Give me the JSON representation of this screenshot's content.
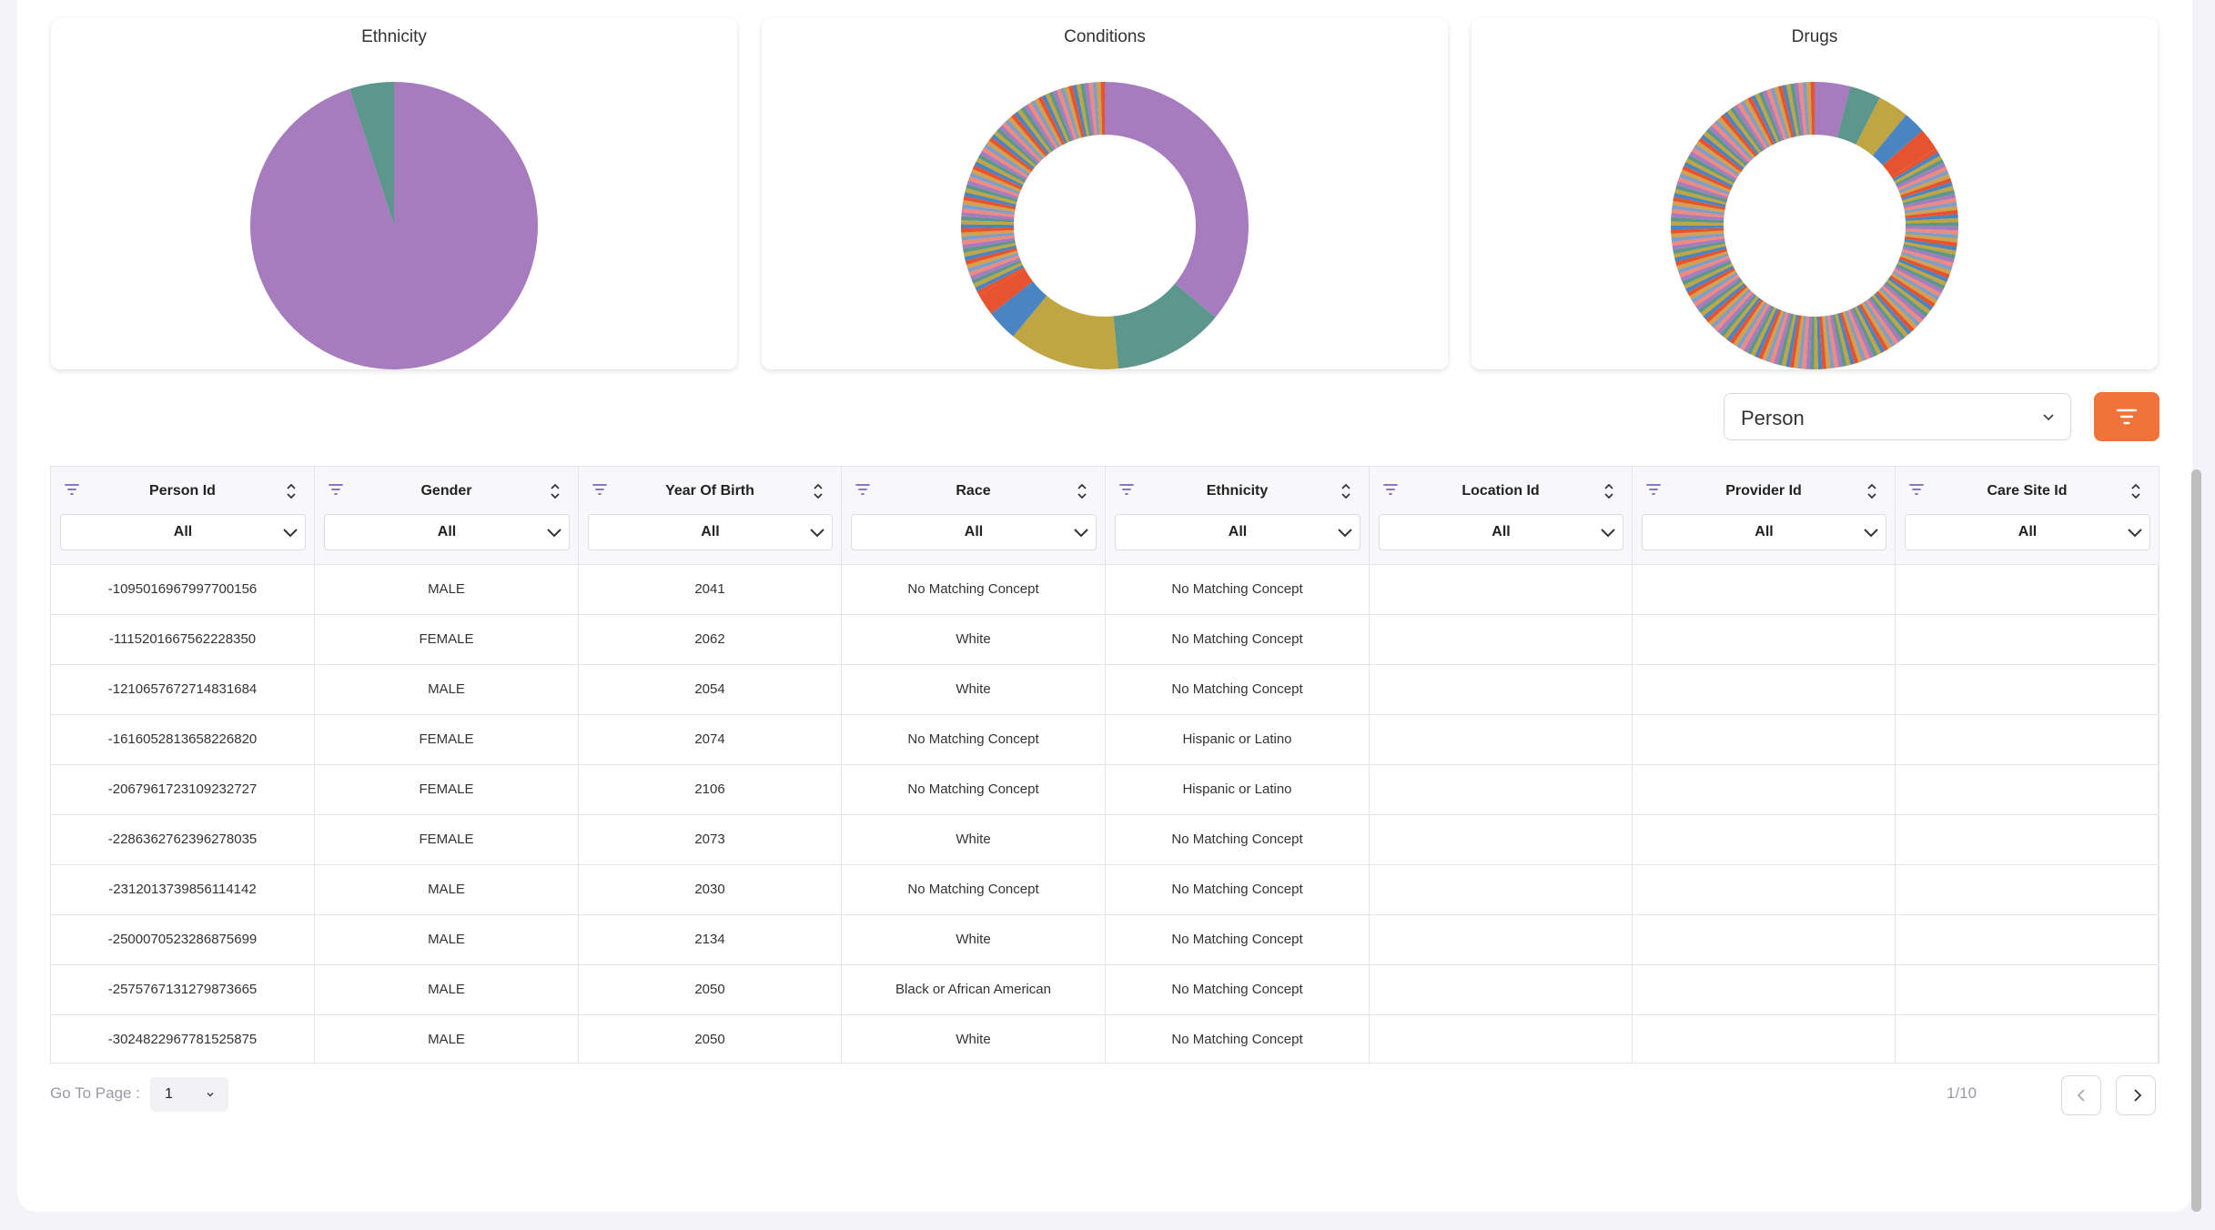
{
  "charts": [
    {
      "title": "Ethnicity"
    },
    {
      "title": "Conditions"
    },
    {
      "title": "Drugs"
    }
  ],
  "chart_data": [
    {
      "type": "pie",
      "title": "Ethnicity",
      "slices": [
        {
          "value": 95,
          "color": "#a67cbf"
        },
        {
          "value": 5,
          "color": "#5c968d"
        }
      ]
    },
    {
      "type": "pie",
      "donut": true,
      "title": "Conditions",
      "slices": [
        {
          "value": 36.0,
          "color": "#a67cbf"
        },
        {
          "value": 12.5,
          "color": "#5c968d"
        },
        {
          "value": 12.5,
          "color": "#bfa643"
        },
        {
          "value": 3.5,
          "color": "#4b85c1"
        },
        {
          "value": 2.5,
          "color": "#e6532e"
        },
        {
          "value": 33.0,
          "color": "#a6847a",
          "note": "many small categories"
        }
      ]
    },
    {
      "type": "pie",
      "donut": true,
      "title": "Drugs",
      "slices": [
        {
          "value": 4.0,
          "color": "#a67cbf"
        },
        {
          "value": 3.5,
          "color": "#5c968d"
        },
        {
          "value": 3.5,
          "color": "#bfa643"
        },
        {
          "value": 2.5,
          "color": "#4b85c1"
        },
        {
          "value": 2.5,
          "color": "#e6532e"
        },
        {
          "value": 84.0,
          "color": "#a6847a",
          "note": "many small categories"
        }
      ]
    }
  ],
  "toolbar": {
    "table_select": "Person"
  },
  "table": {
    "columns": [
      {
        "label": "Person Id",
        "filter": "All"
      },
      {
        "label": "Gender",
        "filter": "All"
      },
      {
        "label": "Year Of Birth",
        "filter": "All"
      },
      {
        "label": "Race",
        "filter": "All"
      },
      {
        "label": "Ethnicity",
        "filter": "All"
      },
      {
        "label": "Location Id",
        "filter": "All"
      },
      {
        "label": "Provider Id",
        "filter": "All"
      },
      {
        "label": "Care Site Id",
        "filter": "All"
      }
    ],
    "rows": [
      [
        "-1095016967997700156",
        "MALE",
        "2041",
        "No Matching Concept",
        "No Matching Concept",
        "",
        "",
        ""
      ],
      [
        "-1115201667562228350",
        "FEMALE",
        "2062",
        "White",
        "No Matching Concept",
        "",
        "",
        ""
      ],
      [
        "-1210657672714831684",
        "MALE",
        "2054",
        "White",
        "No Matching Concept",
        "",
        "",
        ""
      ],
      [
        "-1616052813658226820",
        "FEMALE",
        "2074",
        "No Matching Concept",
        "Hispanic or Latino",
        "",
        "",
        ""
      ],
      [
        "-2067961723109232727",
        "FEMALE",
        "2106",
        "No Matching Concept",
        "Hispanic or Latino",
        "",
        "",
        ""
      ],
      [
        "-2286362762396278035",
        "FEMALE",
        "2073",
        "White",
        "No Matching Concept",
        "",
        "",
        ""
      ],
      [
        "-2312013739856114142",
        "MALE",
        "2030",
        "No Matching Concept",
        "No Matching Concept",
        "",
        "",
        ""
      ],
      [
        "-2500070523286875699",
        "MALE",
        "2134",
        "White",
        "No Matching Concept",
        "",
        "",
        ""
      ],
      [
        "-2575767131279873665",
        "MALE",
        "2050",
        "Black or African American",
        "No Matching Concept",
        "",
        "",
        ""
      ],
      [
        "-3024822967781525875",
        "MALE",
        "2050",
        "White",
        "No Matching Concept",
        "",
        "",
        ""
      ]
    ]
  },
  "pagination": {
    "goto_label": "Go To Page :",
    "current": "1",
    "count": "1/10"
  }
}
